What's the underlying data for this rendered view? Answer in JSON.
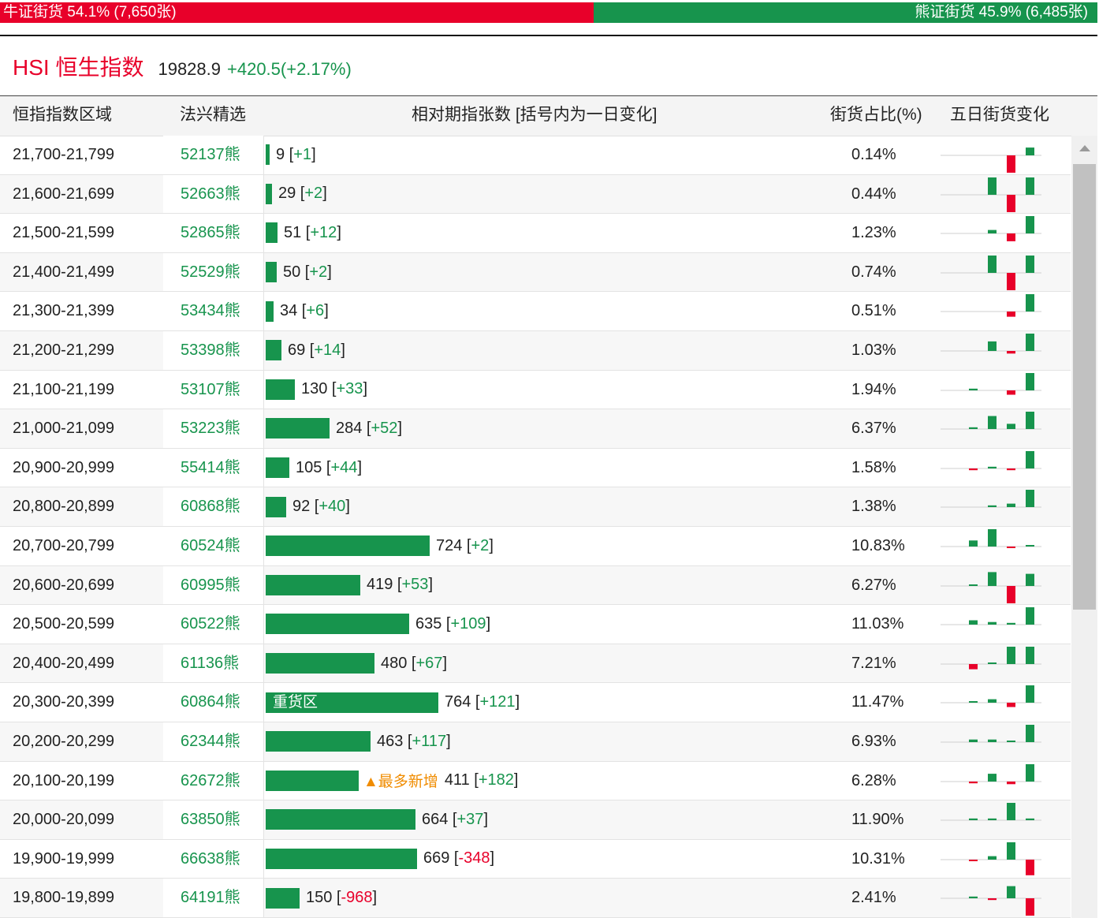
{
  "top_bar": {
    "bull_text": "牛证街货 54.1% (7,650张)",
    "bear_text": "熊证街货 45.9% (6,485张)"
  },
  "index": {
    "name": "HSI 恒生指数",
    "price": "19828.9",
    "change": "+420.5(+2.17%)"
  },
  "headers": [
    "恒指指数区域",
    "法兴精选",
    "相对期指张数 [括号内为一日变化]",
    "街货占比(%)",
    "五日街货变化"
  ],
  "colors": {
    "bear_green": "#17944d",
    "bull_red": "#e8002a",
    "highlight_orange": "#f08c00"
  },
  "rows": [
    {
      "range": "21,700-21,799",
      "code": "52137熊",
      "count": "9",
      "delta": "+1",
      "pct": "0.14%",
      "spark": [
        0,
        0,
        0,
        -1,
        0.45
      ]
    },
    {
      "range": "21,600-21,699",
      "code": "52663熊",
      "count": "29",
      "delta": "+2",
      "pct": "0.44%",
      "spark": [
        0,
        0,
        1,
        -1,
        1
      ]
    },
    {
      "range": "21,500-21,599",
      "code": "52865熊",
      "count": "51",
      "delta": "+12",
      "pct": "1.23%",
      "spark": [
        0,
        0,
        0.2,
        -0.45,
        1
      ]
    },
    {
      "range": "21,400-21,499",
      "code": "52529熊",
      "count": "50",
      "delta": "+2",
      "pct": "0.74%",
      "spark": [
        0,
        0,
        1,
        -1,
        1
      ]
    },
    {
      "range": "21,300-21,399",
      "code": "53434熊",
      "count": "34",
      "delta": "+6",
      "pct": "0.51%",
      "spark": [
        0,
        0,
        0,
        -0.3,
        1
      ]
    },
    {
      "range": "21,200-21,299",
      "code": "53398熊",
      "count": "69",
      "delta": "+14",
      "pct": "1.03%",
      "spark": [
        0,
        0,
        0.55,
        -0.15,
        1
      ]
    },
    {
      "range": "21,100-21,199",
      "code": "53107熊",
      "count": "130",
      "delta": "+33",
      "pct": "1.94%",
      "spark": [
        0,
        0.1,
        0,
        -0.25,
        1
      ]
    },
    {
      "range": "21,000-21,099",
      "code": "53223熊",
      "count": "284",
      "delta": "+52",
      "pct": "6.37%",
      "spark": [
        0,
        0.1,
        0.75,
        0.3,
        1
      ]
    },
    {
      "range": "20,900-20,999",
      "code": "55414熊",
      "count": "105",
      "delta": "+44",
      "pct": "1.58%",
      "spark": [
        0,
        -0.1,
        0.1,
        -0.1,
        1
      ]
    },
    {
      "range": "20,800-20,899",
      "code": "60868熊",
      "count": "92",
      "delta": "+40",
      "pct": "1.38%",
      "spark": [
        0,
        0,
        0.1,
        0.2,
        1
      ]
    },
    {
      "range": "20,700-20,799",
      "code": "60524熊",
      "count": "724",
      "delta": "+2",
      "pct": "10.83%",
      "spark": [
        0,
        0.35,
        1,
        -0.05,
        0.05
      ]
    },
    {
      "range": "20,600-20,699",
      "code": "60995熊",
      "count": "419",
      "delta": "+53",
      "pct": "6.27%",
      "spark": [
        0,
        0.05,
        0.8,
        -1,
        0.7
      ]
    },
    {
      "range": "20,500-20,599",
      "code": "60522熊",
      "count": "635",
      "delta": "+109",
      "pct": "11.03%",
      "spark": [
        0,
        0.25,
        0.15,
        0.1,
        1
      ]
    },
    {
      "range": "20,400-20,499",
      "code": "61136熊",
      "count": "480",
      "delta": "+67",
      "pct": "7.21%",
      "spark": [
        0,
        -0.3,
        0.05,
        1,
        1
      ]
    },
    {
      "range": "20,300-20,399",
      "code": "60864熊",
      "count": "764",
      "delta": "+121",
      "pct": "11.47%",
      "heavy": "重货区",
      "spark": [
        0,
        0.05,
        0.2,
        -0.25,
        1
      ]
    },
    {
      "range": "20,200-20,299",
      "code": "62344熊",
      "count": "463",
      "delta": "+117",
      "pct": "6.93%",
      "spark": [
        0,
        0.15,
        0.15,
        0.05,
        1
      ]
    },
    {
      "range": "20,100-20,199",
      "code": "62672熊",
      "count": "411",
      "delta": "+182",
      "pct": "6.28%",
      "tag": "▲最多新增",
      "spark": [
        0,
        -0.1,
        0.45,
        -0.15,
        1
      ]
    },
    {
      "range": "20,000-20,099",
      "code": "63850熊",
      "count": "664",
      "delta": "+37",
      "pct": "11.90%",
      "spark": [
        0,
        0.1,
        0.1,
        1,
        0.1
      ]
    },
    {
      "range": "19,900-19,999",
      "code": "66638熊",
      "count": "669",
      "delta": "-348",
      "pct": "10.31%",
      "spark": [
        0,
        -0.05,
        0.2,
        1,
        -0.9
      ]
    },
    {
      "range": "19,800-19,899",
      "code": "64191熊",
      "count": "150",
      "delta": "-968",
      "pct": "2.41%",
      "spark": [
        0,
        0.1,
        -0.1,
        0.7,
        -1
      ]
    }
  ],
  "bar_scale_max": 764
}
